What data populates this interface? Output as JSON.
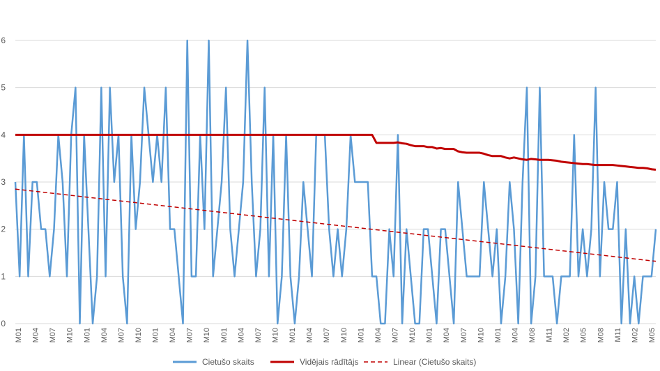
{
  "chart_data": {
    "type": "line",
    "x_tick_labels": [
      "M01",
      "M04",
      "M07",
      "M10",
      "M01",
      "M04",
      "M07",
      "M10",
      "M01",
      "M04",
      "M07",
      "M10",
      "M01",
      "M04",
      "M07",
      "M10",
      "M01",
      "M04",
      "M07",
      "M10",
      "M01",
      "M04",
      "M07",
      "M10",
      "M01",
      "M04",
      "M07",
      "M10",
      "M01",
      "M04",
      "M08",
      "M11",
      "M02",
      "M05",
      "M08",
      "M11",
      "M02",
      "M05"
    ],
    "ylim": [
      0,
      6
    ],
    "y_ticks": [
      0,
      1,
      2,
      3,
      4,
      5,
      6
    ],
    "grid": "horizontal",
    "legend_position": "bottom",
    "series": [
      {
        "name": "Cietušo skaits",
        "color": "#5B9BD5",
        "style": "solid",
        "values": [
          3,
          1,
          4,
          1,
          3,
          3,
          2,
          2,
          1,
          2,
          4,
          3,
          1,
          4,
          5,
          0,
          4,
          2,
          0,
          1,
          5,
          1,
          5,
          3,
          4,
          1,
          0,
          4,
          2,
          3,
          5,
          4,
          3,
          4,
          3,
          5,
          2,
          2,
          1,
          0,
          6,
          1,
          1,
          4,
          2,
          6,
          1,
          2,
          3,
          5,
          2,
          1,
          2,
          3,
          6,
          3,
          1,
          2,
          5,
          1,
          4,
          0,
          1,
          4,
          1,
          0,
          1,
          3,
          2,
          1,
          4,
          4,
          4,
          2,
          1,
          2,
          1,
          2,
          4,
          3,
          3,
          3,
          3,
          1,
          1,
          0,
          0,
          2,
          1,
          4,
          0,
          2,
          1,
          0,
          0,
          2,
          2,
          1,
          0,
          2,
          2,
          1,
          0,
          3,
          2,
          1,
          1,
          1,
          1,
          3,
          2,
          1,
          2,
          0,
          1,
          3,
          2,
          0,
          3,
          5,
          0,
          1,
          5,
          1,
          1,
          1,
          0,
          1,
          1,
          1,
          4,
          1,
          2,
          1,
          2,
          5,
          1,
          3,
          2,
          2,
          3,
          0,
          2,
          0,
          1,
          0,
          1,
          1,
          1,
          2
        ]
      },
      {
        "name": "Vidējais rādītājs",
        "color": "#C00000",
        "style": "solid",
        "values": [
          4,
          4,
          4,
          4,
          4,
          4,
          4,
          4,
          4,
          4,
          4,
          4,
          4,
          4,
          4,
          4,
          4,
          4,
          4,
          4,
          4,
          4,
          4,
          4,
          4,
          4,
          4,
          4,
          4,
          4,
          4,
          4,
          4,
          4,
          4,
          4,
          4,
          4,
          4,
          4,
          4,
          4,
          4,
          4,
          4,
          4,
          4,
          4,
          4,
          4,
          4,
          4,
          4,
          4,
          4,
          4,
          4,
          4,
          4,
          4,
          4,
          4,
          4,
          4,
          4,
          4,
          4,
          4,
          4,
          4,
          4,
          4,
          4,
          4,
          4,
          4,
          4,
          4,
          4,
          4,
          4,
          4,
          4,
          4,
          3.83,
          3.83,
          3.83,
          3.83,
          3.83,
          3.84,
          3.82,
          3.81,
          3.78,
          3.76,
          3.76,
          3.76,
          3.74,
          3.74,
          3.71,
          3.72,
          3.7,
          3.7,
          3.7,
          3.65,
          3.63,
          3.62,
          3.62,
          3.62,
          3.62,
          3.6,
          3.57,
          3.55,
          3.55,
          3.55,
          3.52,
          3.5,
          3.52,
          3.5,
          3.48,
          3.47,
          3.49,
          3.48,
          3.47,
          3.47,
          3.47,
          3.46,
          3.45,
          3.43,
          3.42,
          3.41,
          3.4,
          3.39,
          3.38,
          3.38,
          3.37,
          3.36,
          3.36,
          3.36,
          3.36,
          3.36,
          3.35,
          3.34,
          3.33,
          3.32,
          3.31,
          3.3,
          3.3,
          3.29,
          3.27,
          3.26
        ]
      },
      {
        "name": "Linear (Cietušo skaits)",
        "color": "#C00000",
        "style": "dashed",
        "values": [
          2.85,
          1.32
        ]
      }
    ]
  }
}
